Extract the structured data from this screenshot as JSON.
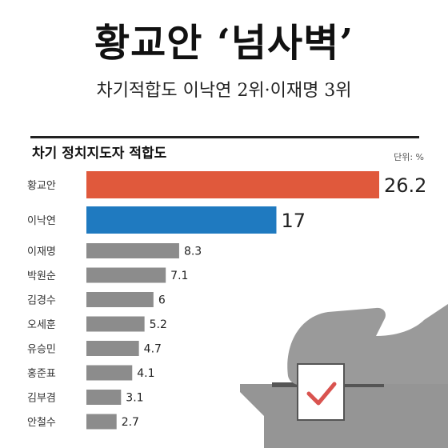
{
  "headline": "황교안 ‘넘사벽’",
  "subhead": "차기적합도 이낙연 2위·이재명 3위",
  "colors": {
    "highlight_first": "#e0593c",
    "highlight_second": "#1f7ac0",
    "default_bar": "#8c8c8c",
    "illustration": "#8a8a8a",
    "check": "#d9534f"
  },
  "chart_data": {
    "type": "bar",
    "orientation": "horizontal",
    "title": "차기 정치지도자 적합도",
    "unit": "단위: %",
    "categories": [
      "황교안",
      "이낙연",
      "이재명",
      "박원순",
      "김경수",
      "오세훈",
      "유승민",
      "홍준표",
      "김부겸",
      "안철수"
    ],
    "values": [
      26.2,
      17,
      8.3,
      7.1,
      6,
      5.2,
      4.7,
      4.1,
      3.1,
      2.7
    ],
    "value_labels": [
      "26.2",
      "17",
      "8.3",
      "7.1",
      "6",
      "5.2",
      "4.7",
      "4.1",
      "3.1",
      "2.7"
    ],
    "xlim": [
      0,
      26.2
    ],
    "grid": false,
    "legend": "none"
  },
  "illustration": {
    "name": "ballot-box-with-hand-illustration"
  }
}
